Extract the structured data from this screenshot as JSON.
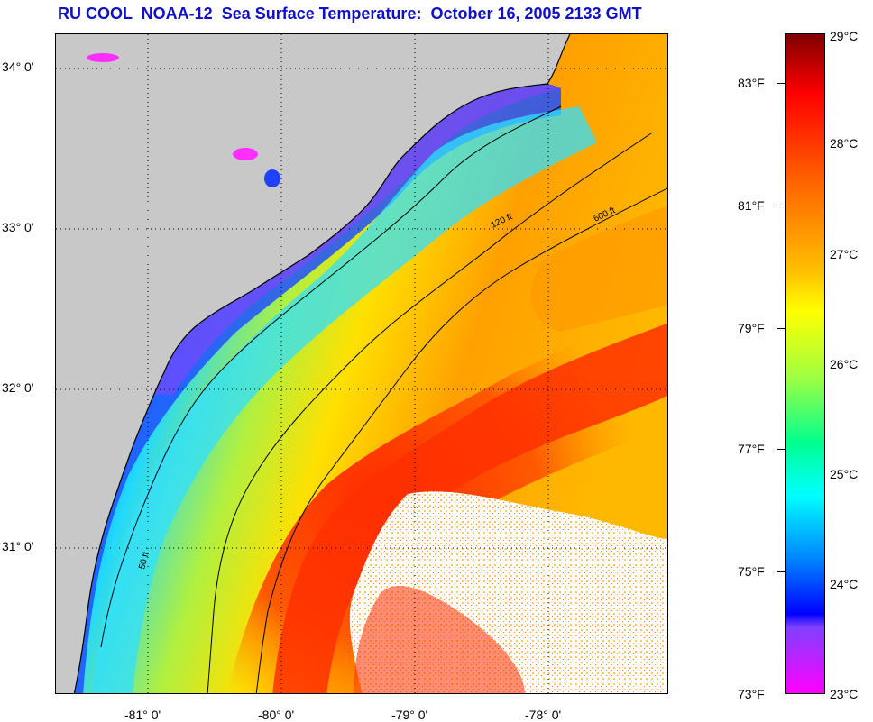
{
  "title": "RU COOL  NOAA-12  Sea Surface Temperature:  October 16, 2005 2133 GMT",
  "map": {
    "latitude_labels": [
      "34° 0'",
      "33° 0'",
      "32° 0'",
      "31° 0'"
    ],
    "longitude_labels": [
      "-81° 0'",
      "-80° 0'",
      "-79° 0'",
      "-78° 0'"
    ],
    "contours": [
      "50 ft",
      "120 ft",
      "600 ft"
    ],
    "colors": {
      "land": "#c8c8c8",
      "cloud": "#ffffff",
      "warm": "#ff3000",
      "cold": "#ff00ff"
    }
  },
  "colorbar": {
    "fahrenheit_labels": [
      "83°F",
      "81°F",
      "79°F",
      "77°F",
      "75°F",
      "73°F"
    ],
    "celsius_labels": [
      "29°C",
      "28°C",
      "27°C",
      "26°C",
      "25°C",
      "24°C",
      "23°C"
    ]
  }
}
